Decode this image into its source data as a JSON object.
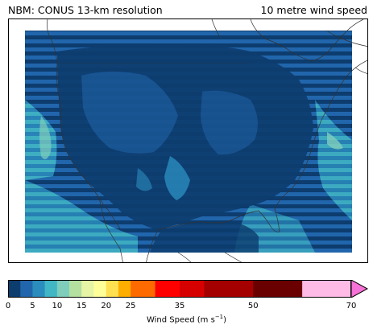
{
  "titles": {
    "left": "NBM: CONUS 13-km resolution",
    "right": "10 metre wind speed"
  },
  "map": {
    "variable": "10 metre wind speed",
    "region": "CONUS",
    "background_color": "#1a4e8a",
    "coast_color": "#333333"
  },
  "colorbar": {
    "label_text": "Wind Speed (m s",
    "label_exponent": "−1",
    "label_suffix": ")",
    "ticks": [
      "0",
      "5",
      "10",
      "15",
      "20",
      "25",
      "35",
      "50",
      "70"
    ],
    "tick_values": [
      0,
      5,
      10,
      15,
      20,
      25,
      35,
      50,
      70
    ],
    "bounds": [
      0,
      2.5,
      5,
      7.5,
      10,
      12.5,
      15,
      17.5,
      20,
      22.5,
      25,
      30,
      35,
      40,
      50,
      60,
      70
    ],
    "colors": [
      "#0d3c6e",
      "#2166ac",
      "#2b8cbe",
      "#41b6c4",
      "#7fcdbb",
      "#b4e0a0",
      "#e5f5a5",
      "#ffff99",
      "#fee050",
      "#fdae00",
      "#fd6a00",
      "#ff0000",
      "#d70000",
      "#a50000",
      "#6b0000",
      "#fdbbe6"
    ],
    "extend_color": "#f772d6"
  }
}
